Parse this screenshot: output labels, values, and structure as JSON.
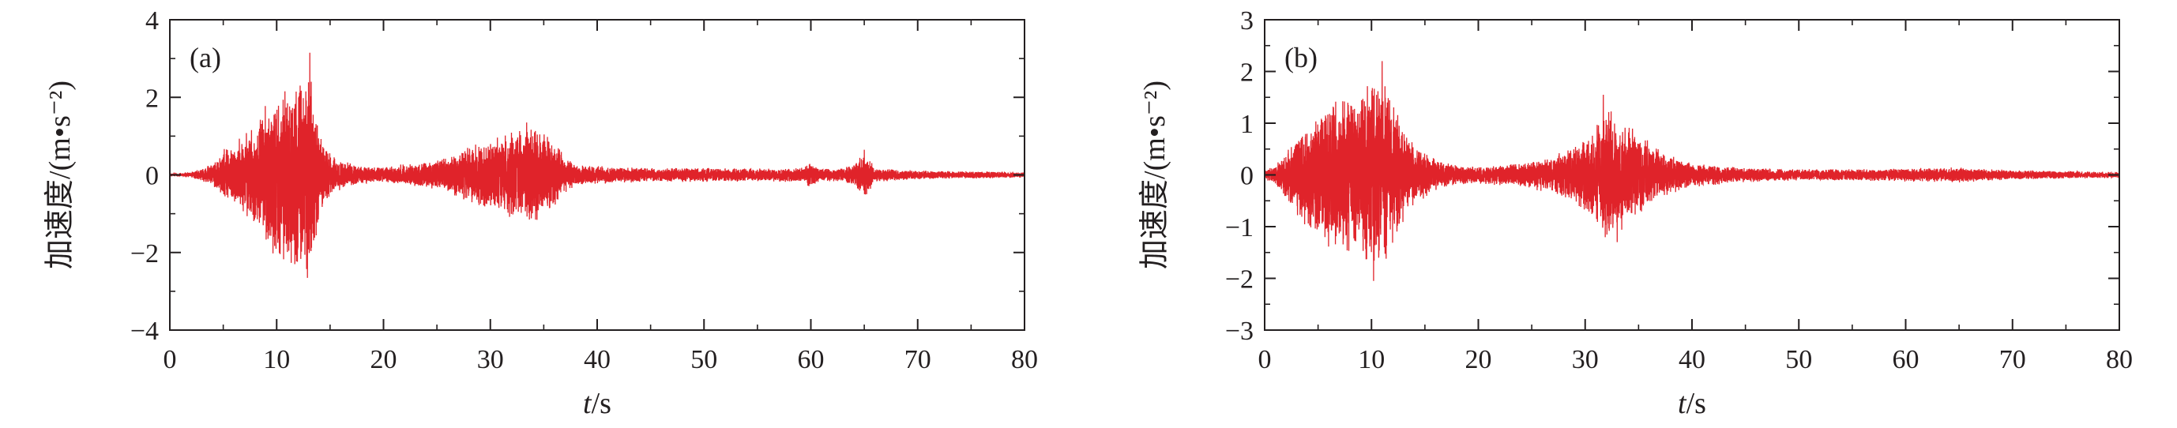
{
  "chart_data": [
    {
      "type": "line",
      "panel_label": "(a)",
      "ylabel": "加速度/(m•s⁻²)",
      "xlabel_var": "t",
      "xlabel_unit": "/s",
      "xlim": [
        0,
        80
      ],
      "ylim": [
        -4,
        4
      ],
      "xticks": [
        0,
        10,
        20,
        30,
        40,
        50,
        60,
        70,
        80
      ],
      "yticks": [
        4,
        2,
        0,
        -2,
        -4
      ],
      "ytick_labels": [
        "4",
        "2",
        "0",
        "−2",
        "−4"
      ],
      "grid": false,
      "line_color": "#e0232a",
      "envelope": [
        [
          0,
          0.04
        ],
        [
          2,
          0.08
        ],
        [
          4,
          0.3
        ],
        [
          5,
          0.7
        ],
        [
          6,
          0.9
        ],
        [
          7,
          1.1
        ],
        [
          8,
          1.4
        ],
        [
          9,
          2.0
        ],
        [
          10,
          2.3
        ],
        [
          11,
          2.4
        ],
        [
          12,
          2.6
        ],
        [
          13,
          3.15
        ],
        [
          14,
          1.2
        ],
        [
          15,
          0.6
        ],
        [
          16,
          0.4
        ],
        [
          18,
          0.25
        ],
        [
          20,
          0.22
        ],
        [
          22,
          0.3
        ],
        [
          24,
          0.35
        ],
        [
          26,
          0.5
        ],
        [
          28,
          0.8
        ],
        [
          30,
          1.0
        ],
        [
          32,
          1.2
        ],
        [
          34,
          1.3
        ],
        [
          35,
          1.2
        ],
        [
          36,
          0.9
        ],
        [
          37,
          0.5
        ],
        [
          38,
          0.3
        ],
        [
          40,
          0.25
        ],
        [
          45,
          0.2
        ],
        [
          50,
          0.2
        ],
        [
          55,
          0.18
        ],
        [
          59,
          0.2
        ],
        [
          60,
          0.35
        ],
        [
          61,
          0.18
        ],
        [
          63,
          0.18
        ],
        [
          64,
          0.3
        ],
        [
          65,
          0.65
        ],
        [
          66,
          0.2
        ],
        [
          70,
          0.12
        ],
        [
          75,
          0.1
        ],
        [
          80,
          0.08
        ]
      ],
      "peaks": [
        [
          13.1,
          3.15
        ],
        [
          11.7,
          -2.3
        ],
        [
          33.4,
          1.35
        ],
        [
          65.0,
          0.65
        ]
      ]
    },
    {
      "type": "line",
      "panel_label": "(b)",
      "ylabel": "加速度/(m•s⁻²)",
      "xlabel_var": "t",
      "xlabel_unit": "/s",
      "xlim": [
        0,
        80
      ],
      "ylim": [
        -3,
        3
      ],
      "xticks": [
        0,
        10,
        20,
        30,
        40,
        50,
        60,
        70,
        80
      ],
      "yticks": [
        3,
        2,
        1,
        0,
        -1,
        -2,
        -3
      ],
      "ytick_labels": [
        "3",
        "2",
        "1",
        "0",
        "−1",
        "−2",
        "−3"
      ],
      "grid": false,
      "line_color": "#e0232a",
      "envelope": [
        [
          0,
          0.08
        ],
        [
          1,
          0.2
        ],
        [
          2,
          0.5
        ],
        [
          3,
          0.8
        ],
        [
          4,
          1.1
        ],
        [
          5,
          1.3
        ],
        [
          6,
          1.5
        ],
        [
          7,
          1.6
        ],
        [
          8,
          1.7
        ],
        [
          9,
          1.8
        ],
        [
          10,
          1.9
        ],
        [
          11,
          2.1
        ],
        [
          12,
          1.5
        ],
        [
          13,
          1.0
        ],
        [
          14,
          0.6
        ],
        [
          16,
          0.35
        ],
        [
          18,
          0.2
        ],
        [
          20,
          0.18
        ],
        [
          24,
          0.25
        ],
        [
          27,
          0.4
        ],
        [
          29,
          0.6
        ],
        [
          30,
          0.8
        ],
        [
          31,
          1.1
        ],
        [
          32,
          1.4
        ],
        [
          33,
          1.2
        ],
        [
          35,
          0.9
        ],
        [
          37,
          0.5
        ],
        [
          40,
          0.25
        ],
        [
          45,
          0.15
        ],
        [
          50,
          0.12
        ],
        [
          55,
          0.12
        ],
        [
          60,
          0.14
        ],
        [
          65,
          0.16
        ],
        [
          70,
          0.1
        ],
        [
          75,
          0.08
        ],
        [
          80,
          0.06
        ]
      ],
      "peaks": [
        [
          11.0,
          2.2
        ],
        [
          10.2,
          -2.05
        ],
        [
          31.7,
          1.55
        ],
        [
          33.0,
          -1.3
        ]
      ]
    }
  ]
}
